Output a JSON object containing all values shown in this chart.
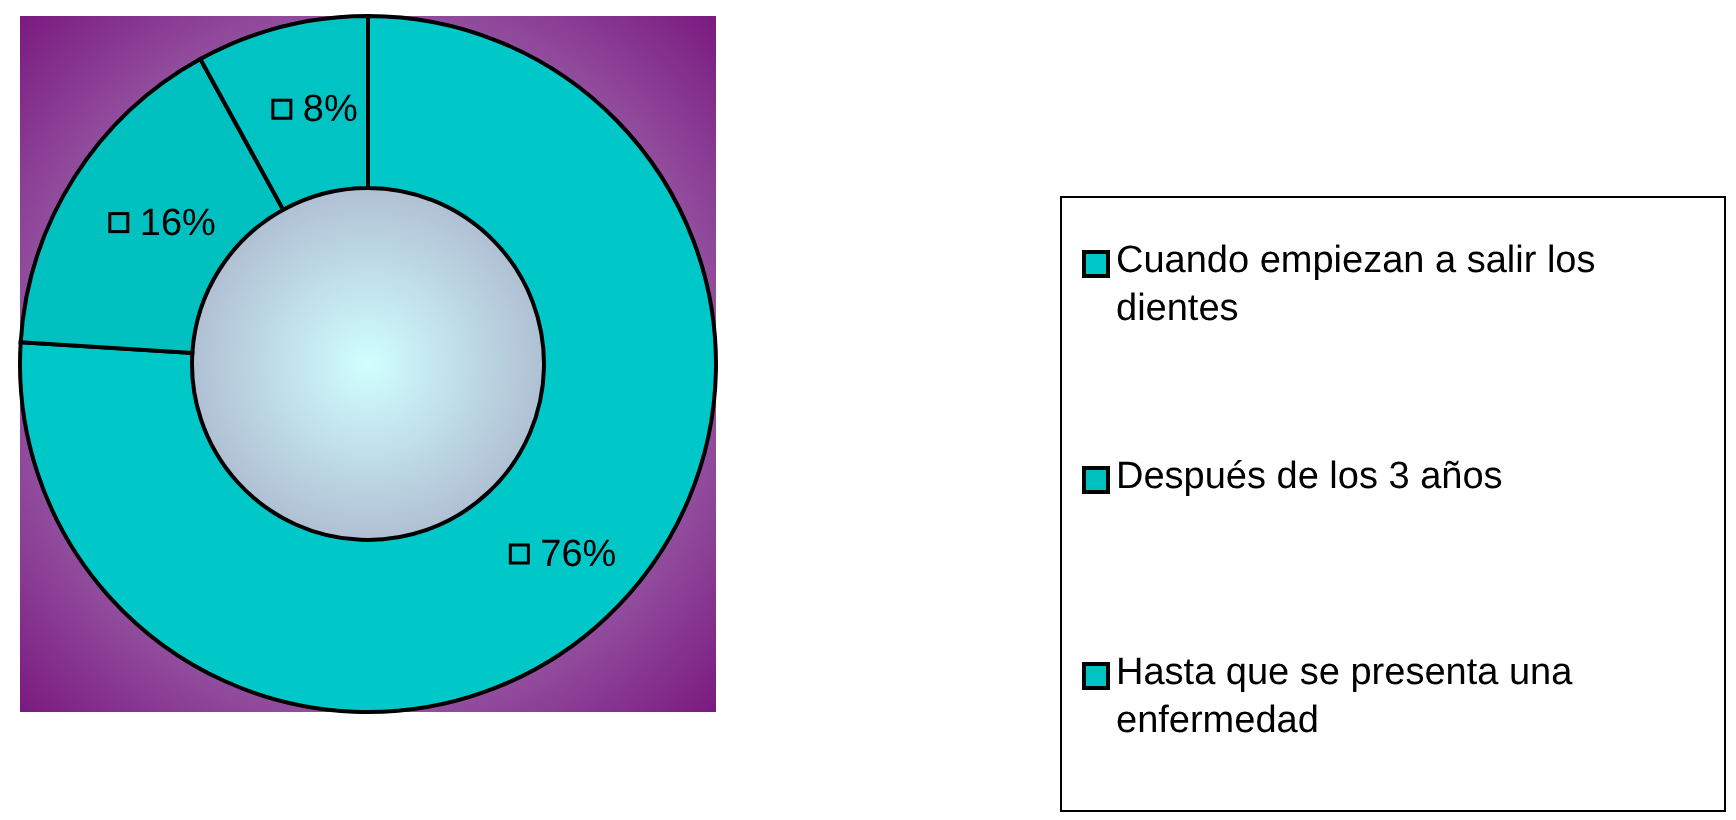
{
  "chart_data": {
    "type": "donut",
    "categories": [
      "Cuando empiezan a salir los dientes",
      "Después de los 3 años",
      "Hasta que se presenta una enfermedad"
    ],
    "values": [
      76,
      16,
      8
    ],
    "colors": [
      "#00c8c8",
      "#00c0c0",
      "#00c4c4"
    ],
    "value_labels": [
      "76%",
      "16%",
      "8%"
    ],
    "legend": "right"
  }
}
